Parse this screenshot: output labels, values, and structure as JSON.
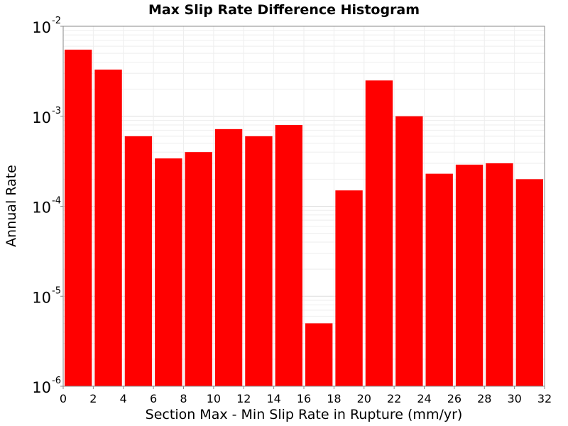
{
  "chart_data": {
    "type": "bar",
    "title": "Max Slip Rate Difference Histogram",
    "xlabel": "Section Max - Min Slip Rate in Rupture (mm/yr)",
    "ylabel": "Annual Rate",
    "y_scale": "log",
    "ylim": [
      1e-06,
      0.01
    ],
    "xlim": [
      0,
      32
    ],
    "grid": true,
    "bin_width": 2,
    "x_ticks": [
      "0",
      "2",
      "4",
      "6",
      "8",
      "10",
      "12",
      "14",
      "16",
      "18",
      "20",
      "22",
      "24",
      "26",
      "28",
      "30",
      "32"
    ],
    "y_ticks": [
      {
        "base": "10",
        "exp": "-6"
      },
      {
        "base": "10",
        "exp": "-5"
      },
      {
        "base": "10",
        "exp": "-4"
      },
      {
        "base": "10",
        "exp": "-3"
      },
      {
        "base": "10",
        "exp": "-2"
      }
    ],
    "bins": [
      {
        "x": 1,
        "value": 0.0055
      },
      {
        "x": 3,
        "value": 0.0033
      },
      {
        "x": 5,
        "value": 0.0006
      },
      {
        "x": 7,
        "value": 0.00034
      },
      {
        "x": 9,
        "value": 0.0004
      },
      {
        "x": 11,
        "value": 0.00072
      },
      {
        "x": 13,
        "value": 0.0006
      },
      {
        "x": 15,
        "value": 0.0008
      },
      {
        "x": 17,
        "value": 5e-06
      },
      {
        "x": 19,
        "value": 0.00015
      },
      {
        "x": 21,
        "value": 0.0025
      },
      {
        "x": 23,
        "value": 0.001
      },
      {
        "x": 25,
        "value": 0.00023
      },
      {
        "x": 27,
        "value": 0.00029
      },
      {
        "x": 29,
        "value": 0.0003
      },
      {
        "x": 31,
        "value": 0.0002
      }
    ],
    "bar_color": "#ff0000"
  }
}
